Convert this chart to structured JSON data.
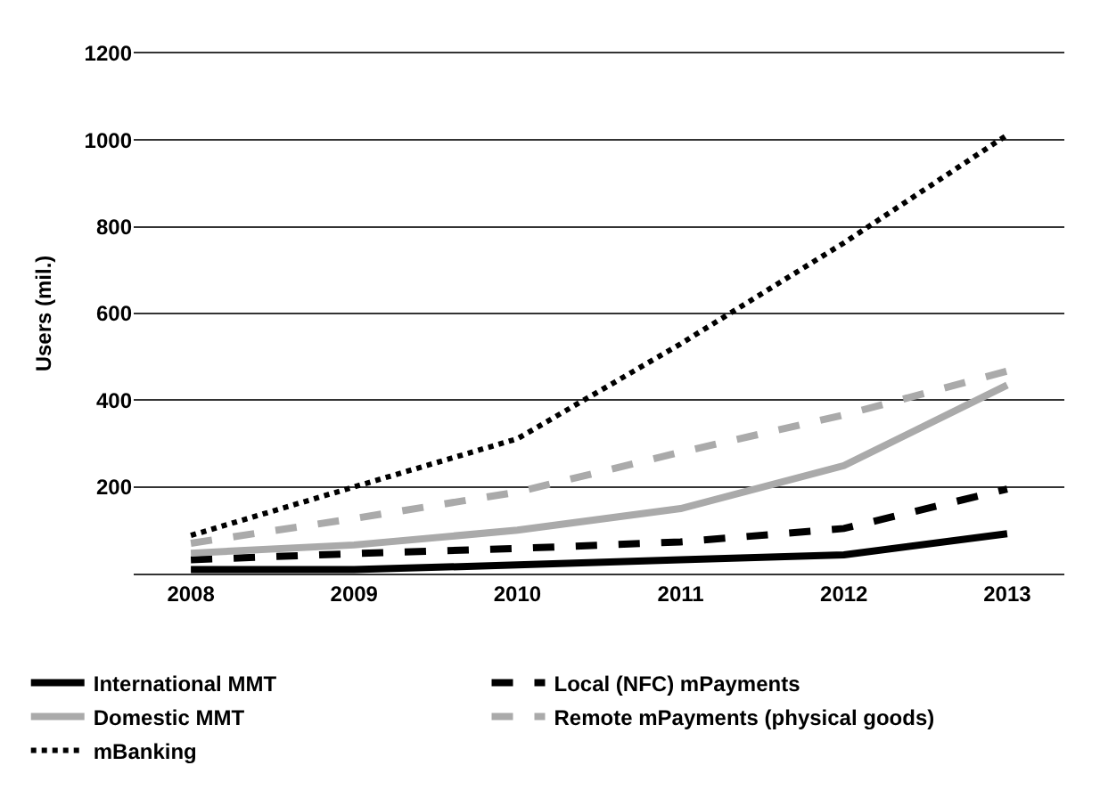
{
  "chart_data": {
    "type": "line",
    "ylabel": "Users (mil.)",
    "categories": [
      "2008",
      "2009",
      "2010",
      "2011",
      "2012",
      "2013"
    ],
    "series": [
      {
        "name": "International MMT",
        "color": "#000000",
        "line_style": "solid",
        "values": [
          9,
          9,
          20,
          32,
          43,
          92
        ]
      },
      {
        "name": "Local (NFC) mPayments",
        "color": "#000000",
        "line_style": "dashed",
        "values": [
          32,
          46,
          58,
          73,
          104,
          195
        ]
      },
      {
        "name": "Domestic MMT",
        "color": "#aaaaaa",
        "line_style": "solid",
        "values": [
          47,
          66,
          100,
          150,
          249,
          435
        ]
      },
      {
        "name": "Remote mPayments (physical goods)",
        "color": "#aaaaaa",
        "line_style": "dashed",
        "values": [
          70,
          127,
          188,
          280,
          366,
          467
        ]
      },
      {
        "name": "mBanking",
        "color": "#000000",
        "line_style": "dotted",
        "values": [
          88,
          200,
          311,
          530,
          763,
          1012
        ]
      }
    ],
    "ylim": [
      0,
      1200
    ],
    "yticks": [
      {
        "value": 0,
        "label": null
      },
      200,
      400,
      600,
      800,
      1000,
      1200
    ],
    "grid": "y",
    "legend": "bottom",
    "marker": "none"
  }
}
